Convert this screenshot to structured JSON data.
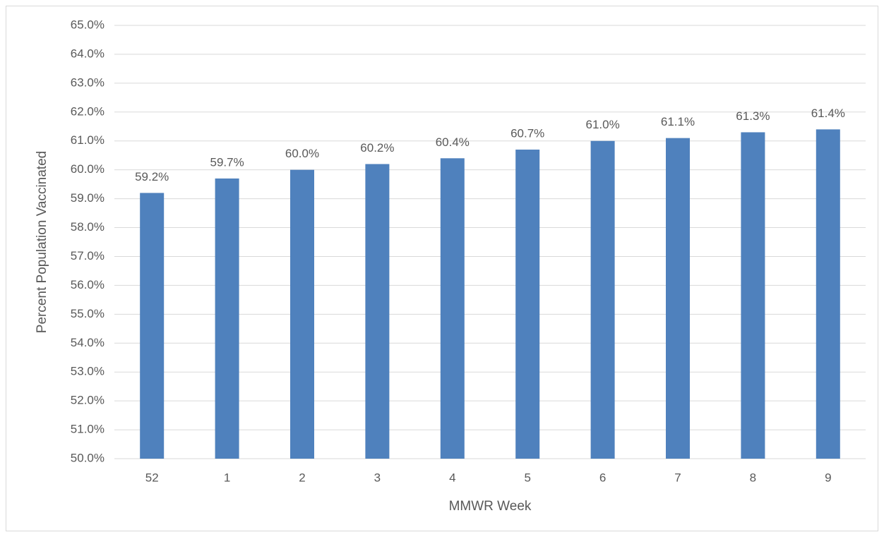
{
  "chart_data": {
    "type": "bar",
    "x_label": "MMWR Week",
    "y_label": "Percent Population Vaccinated",
    "categories": [
      "52",
      "1",
      "2",
      "3",
      "4",
      "5",
      "6",
      "7",
      "8",
      "9"
    ],
    "values": [
      59.2,
      59.7,
      60.0,
      60.2,
      60.4,
      60.7,
      61.0,
      61.1,
      61.3,
      61.4
    ],
    "value_labels": [
      "59.2%",
      "59.7%",
      "60.0%",
      "60.2%",
      "60.4%",
      "60.7%",
      "61.0%",
      "61.1%",
      "61.3%",
      "61.4%"
    ],
    "color": "#4f81bd",
    "ylim": [
      50,
      65
    ],
    "yticks": [
      {
        "value": 50,
        "label": "50.0%"
      },
      {
        "value": 51,
        "label": "51.0%"
      },
      {
        "value": 52,
        "label": "52.0%"
      },
      {
        "value": 53,
        "label": "53.0%"
      },
      {
        "value": 54,
        "label": "54.0%"
      },
      {
        "value": 55,
        "label": "55.0%"
      },
      {
        "value": 56,
        "label": "56.0%"
      },
      {
        "value": 57,
        "label": "57.0%"
      },
      {
        "value": 58,
        "label": "58.0%"
      },
      {
        "value": 59,
        "label": "59.0%"
      },
      {
        "value": 60,
        "label": "60.0%"
      },
      {
        "value": 61,
        "label": "61.0%"
      },
      {
        "value": 62,
        "label": "62.0%"
      },
      {
        "value": 63,
        "label": "63.0%"
      },
      {
        "value": 64,
        "label": "64.0%"
      },
      {
        "value": 65,
        "label": "65.0%"
      }
    ],
    "grid": true
  }
}
